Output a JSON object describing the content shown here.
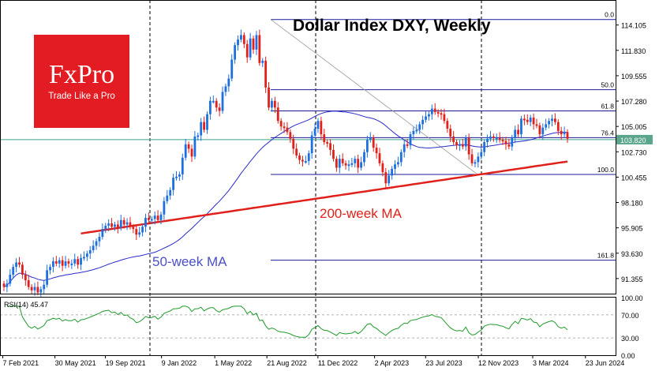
{
  "logo": {
    "brand": "FxPro",
    "tagline": "Trade Like a Pro"
  },
  "chart_data": {
    "type": "candlestick",
    "title": "Dollar Index DXY, Weekly",
    "current_price": "103.820",
    "y_ticks": [
      "114.105",
      "111.830",
      "109.555",
      "107.280",
      "105.005",
      "102.730",
      "100.455",
      "98.180",
      "95.905",
      "93.630",
      "91.355"
    ],
    "x_ticks": [
      "7 Feb 2021",
      "30 May 2021",
      "19 Sep 2021",
      "9 Jan 2022",
      "1 May 2022",
      "21 Aug 2022",
      "11 Dec 2022",
      "2 Apr 2023",
      "23 Jul 2023",
      "12 Nov 2023",
      "3 Mar 2024",
      "23 Jun 2024"
    ],
    "ylim": [
      90.0,
      115.5
    ],
    "fib_levels": [
      {
        "label": "0.0",
        "value": 114.6
      },
      {
        "label": "50.0",
        "value": 108.3
      },
      {
        "label": "61.8",
        "value": 106.4
      },
      {
        "label": "76.4",
        "value": 104.0
      },
      {
        "label": "100.0",
        "value": 100.7
      },
      {
        "label": "161.8",
        "value": 93.0
      }
    ],
    "annotations": {
      "ma200": "200-week MA",
      "ma50": "50-week MA"
    },
    "series": [
      {
        "name": "DXY close",
        "kind": "candles",
        "values": [
          90.6,
          90.9,
          91.7,
          92.4,
          92.8,
          92.6,
          91.7,
          91.2,
          90.6,
          90.3,
          90.6,
          90.1,
          90.4,
          90.8,
          92.1,
          92.4,
          92.9,
          92.7,
          93.0,
          92.5,
          92.9,
          92.7,
          92.7,
          93.1,
          92.6,
          93.2,
          93.3,
          93.6,
          93.9,
          94.3,
          94.7,
          95.1,
          95.8,
          96.1,
          96.3,
          96.0,
          96.2,
          95.9,
          96.6,
          96.2,
          96.4,
          96.0,
          95.8,
          95.3,
          95.5,
          96.0,
          96.8,
          96.6,
          96.7,
          97.0,
          96.6,
          97.1,
          98.3,
          98.8,
          99.3,
          100.4,
          100.5,
          100.7,
          102.2,
          103.4,
          103.0,
          102.3,
          104.1,
          104.2,
          105.4,
          104.7,
          106.1,
          107.3,
          107.3,
          106.7,
          106.4,
          108.1,
          108.6,
          109.3,
          111.0,
          112.3,
          112.8,
          113.2,
          112.4,
          111.2,
          112.9,
          111.9,
          113.2,
          110.7,
          110.9,
          108.5,
          106.7,
          107.3,
          106.7,
          105.5,
          105.0,
          104.9,
          104.5,
          103.9,
          103.0,
          102.4,
          102.0,
          101.9,
          101.9,
          102.6,
          104.2,
          104.8,
          105.5,
          104.3,
          103.6,
          103.5,
          102.9,
          102.1,
          101.3,
          102.1,
          101.7,
          101.5,
          101.6,
          101.7,
          102.1,
          101.3,
          101.8,
          102.7,
          103.8,
          104.0,
          103.1,
          102.6,
          101.7,
          100.9,
          99.9,
          100.6,
          101.2,
          101.6,
          101.8,
          102.7,
          103.4,
          103.3,
          104.3,
          104.6,
          104.7,
          105.2,
          105.6,
          105.9,
          106.1,
          106.6,
          106.3,
          106.2,
          106.1,
          105.5,
          104.8,
          104.1,
          103.6,
          103.3,
          103.4,
          103.2,
          104.0,
          102.5,
          101.7,
          101.8,
          102.3,
          102.7,
          103.6,
          103.9,
          104.1,
          104.0,
          104.0,
          103.8,
          103.7,
          103.4,
          103.2,
          104.0,
          104.7,
          104.3,
          105.7,
          105.6,
          105.4,
          105.8,
          105.2,
          105.1,
          104.3,
          104.9,
          105.2,
          105.5,
          105.7,
          105.4,
          104.6,
          104.3,
          104.5,
          103.9
        ]
      }
    ]
  }
}
